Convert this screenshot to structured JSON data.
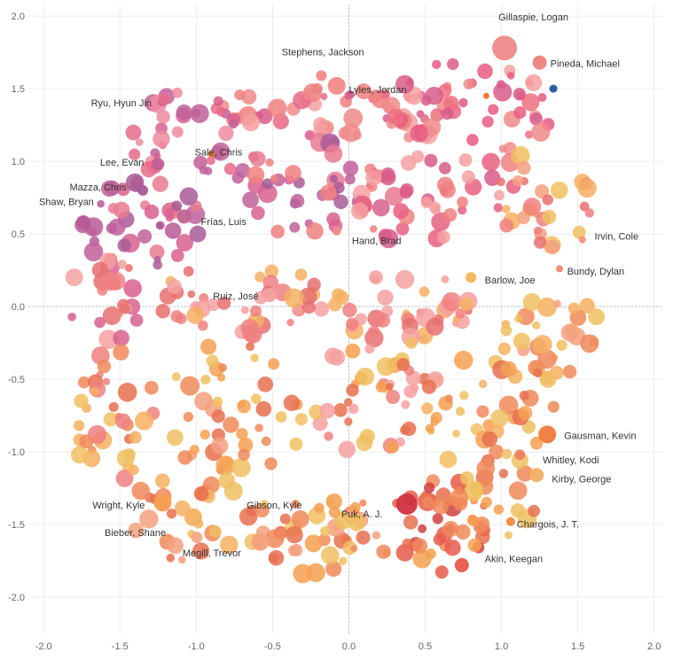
{
  "chart_data": {
    "type": "scatter",
    "title": "",
    "xlabel": "",
    "ylabel": "",
    "xlim": [
      -2.1,
      2.06
    ],
    "ylim": [
      -2.25,
      2.08
    ],
    "xticks": [
      -2.0,
      -1.5,
      -1.0,
      -0.5,
      0.0,
      0.5,
      1.0,
      1.5,
      2.0
    ],
    "yticks": [
      -2.0,
      -1.5,
      -1.0,
      -0.5,
      0.0,
      0.5,
      1.0,
      1.5,
      2.0
    ],
    "x_tick_labels": [
      "-2.0",
      "-1.5",
      "-1.0",
      "-0.5",
      "0.0",
      "0.5",
      "1.0",
      "1.5",
      "2.0"
    ],
    "y_tick_labels": [
      "-2.0",
      "-1.5",
      "-1.0",
      "-0.5",
      "0.0",
      "0.5",
      "1.0",
      "1.5",
      "2.0"
    ],
    "grid": true,
    "zero_lines": true,
    "legend": "none",
    "color_scale": [
      "#c8143c",
      "#e8604a",
      "#f48a4a",
      "#f2b85a",
      "#f0c060",
      "#f08080",
      "#c86090",
      "#a05090",
      "#2c5fa0"
    ],
    "labeled_points": [
      {
        "name": "Gillaspie, Logan",
        "x": 1.02,
        "y": 1.78,
        "size": 14,
        "color": "#f08a8a"
      },
      {
        "name": "Pineda, Michael",
        "x": 1.25,
        "y": 1.68,
        "size": 8,
        "color": "#f08080"
      },
      {
        "name": "Stephens, Jackson",
        "x": -0.18,
        "y": 1.59,
        "size": 6,
        "color": "#f08a8a"
      },
      {
        "name": "Lyles, Jordan",
        "x": -0.08,
        "y": 1.52,
        "size": 10,
        "color": "#f28a8a"
      },
      {
        "name": "Ryu, Hyun Jin",
        "x": -1.21,
        "y": 1.43,
        "size": 6,
        "color": "#e86a8a"
      },
      {
        "name": "Lee, Evan",
        "x": -1.25,
        "y": 0.98,
        "size": 7,
        "color": "#c0609a"
      },
      {
        "name": "Sale, Chris",
        "x": -0.9,
        "y": 1.05,
        "size": 4,
        "color": "#f07a3a"
      },
      {
        "name": "Mazza, Chris",
        "x": -1.35,
        "y": 0.8,
        "size": 6,
        "color": "#a85a96"
      },
      {
        "name": "Shaw, Bryan",
        "x": -1.74,
        "y": 0.58,
        "size": 8,
        "color": "#b85a96"
      },
      {
        "name": "Frías, Luis",
        "x": -1.08,
        "y": 0.62,
        "size": 8,
        "color": "#c06494"
      },
      {
        "name": "Hand, Brad",
        "x": -0.08,
        "y": 0.52,
        "size": 5,
        "color": "#f08a8a"
      },
      {
        "name": "Irvin, Cole",
        "x": 1.53,
        "y": 0.46,
        "size": 4,
        "color": "#f29080"
      },
      {
        "name": "Bundy, Dylan",
        "x": 1.38,
        "y": 0.26,
        "size": 4,
        "color": "#f48a6a"
      },
      {
        "name": "Barlow, Joe",
        "x": 0.8,
        "y": 0.2,
        "size": 6,
        "color": "#f4b45a"
      },
      {
        "name": "Ruiz, José",
        "x": -0.52,
        "y": 0.08,
        "size": 8,
        "color": "#f4a0a0"
      },
      {
        "name": "Gausman, Kevin",
        "x": 1.3,
        "y": -0.88,
        "size": 10,
        "color": "#f07a3a"
      },
      {
        "name": "Whitley, Kodi",
        "x": 1.12,
        "y": -1.02,
        "size": 6,
        "color": "#f08060"
      },
      {
        "name": "Kirby, George",
        "x": 1.23,
        "y": -1.16,
        "size": 8,
        "color": "#f0b060"
      },
      {
        "name": "Wright, Kyle",
        "x": -1.22,
        "y": -1.35,
        "size": 10,
        "color": "#f4a050"
      },
      {
        "name": "Gibson, Kyle",
        "x": -0.35,
        "y": -1.36,
        "size": 5,
        "color": "#f09060"
      },
      {
        "name": "Puk, A. J.",
        "x": 0.38,
        "y": -1.36,
        "size": 12,
        "color": "#d03040"
      },
      {
        "name": "Bieber, Shane",
        "x": -1.02,
        "y": -1.45,
        "size": 10,
        "color": "#f4b060"
      },
      {
        "name": "Chargois, J. T.",
        "x": 1.06,
        "y": -1.48,
        "size": 5,
        "color": "#f08a3a"
      },
      {
        "name": "Megill, Trevor",
        "x": -0.58,
        "y": -1.62,
        "size": 10,
        "color": "#f4a080"
      },
      {
        "name": "Akin, Keegan",
        "x": 0.74,
        "y": -1.78,
        "size": 8,
        "color": "#e85a4a"
      }
    ],
    "point_labels": [
      {
        "text": "Gillaspie, Logan",
        "x": 0.98,
        "y": 1.97
      },
      {
        "text": "Pineda, Michael",
        "x": 1.32,
        "y": 1.65
      },
      {
        "text": "Stephens, Jackson",
        "x": -0.44,
        "y": 1.73
      },
      {
        "text": "Lyles, Jordan",
        "x": 0.0,
        "y": 1.47
      },
      {
        "text": "Ryu, Hyun Jin",
        "x": -1.69,
        "y": 1.38
      },
      {
        "text": "Lee, Evan",
        "x": -1.63,
        "y": 0.97
      },
      {
        "text": "Sale, Chris",
        "x": -1.01,
        "y": 1.04
      },
      {
        "text": "Mazza, Chris",
        "x": -1.83,
        "y": 0.8
      },
      {
        "text": "Shaw, Bryan",
        "x": -2.03,
        "y": 0.7
      },
      {
        "text": "Frías, Luis",
        "x": -0.97,
        "y": 0.56
      },
      {
        "text": "Hand, Brad",
        "x": 0.02,
        "y": 0.43
      },
      {
        "text": "Irvin, Cole",
        "x": 1.61,
        "y": 0.46
      },
      {
        "text": "Bundy, Dylan",
        "x": 1.43,
        "y": 0.22
      },
      {
        "text": "Barlow, Joe",
        "x": 0.89,
        "y": 0.16
      },
      {
        "text": "Ruiz, José",
        "x": -0.89,
        "y": 0.05
      },
      {
        "text": "Gausman, Kevin",
        "x": 1.41,
        "y": -0.91
      },
      {
        "text": "Whitley, Kodi",
        "x": 1.27,
        "y": -1.08
      },
      {
        "text": "Kirby, George",
        "x": 1.33,
        "y": -1.21
      },
      {
        "text": "Wright, Kyle",
        "x": -1.68,
        "y": -1.39
      },
      {
        "text": "Gibson, Kyle",
        "x": -0.67,
        "y": -1.39
      },
      {
        "text": "Puk, A. J.",
        "x": -0.05,
        "y": -1.45
      },
      {
        "text": "Bieber, Shane",
        "x": -1.6,
        "y": -1.58
      },
      {
        "text": "Chargois, J. T.",
        "x": 1.1,
        "y": -1.52
      },
      {
        "text": "Megill, Trevor",
        "x": -1.09,
        "y": -1.72
      },
      {
        "text": "Akin, Keegan",
        "x": 0.89,
        "y": -1.76
      }
    ],
    "clusters": [
      {
        "cx": -0.05,
        "cy": 1.35,
        "rx": 0.85,
        "ry": 0.18,
        "n": 55,
        "colors": [
          "#f08080",
          "#e86a8a",
          "#f4a0a0",
          "#d85a8a",
          "#f08a8a"
        ]
      },
      {
        "cx": 0.78,
        "cy": 1.35,
        "rx": 0.55,
        "ry": 0.35,
        "n": 45,
        "colors": [
          "#f07080",
          "#e85a80",
          "#f4a0a0",
          "#d85a8a",
          "#f08a8a"
        ]
      },
      {
        "cx": -1.05,
        "cy": 1.2,
        "rx": 0.4,
        "ry": 0.35,
        "n": 35,
        "colors": [
          "#e86a8a",
          "#c0609a",
          "#d86090",
          "#f08aa0"
        ]
      },
      {
        "cx": -1.35,
        "cy": 0.55,
        "rx": 0.4,
        "ry": 0.35,
        "n": 40,
        "colors": [
          "#a85a96",
          "#c0609a",
          "#b85a96",
          "#d86090",
          "#e87a90"
        ]
      },
      {
        "cx": -0.25,
        "cy": 0.8,
        "rx": 0.55,
        "ry": 0.35,
        "n": 45,
        "colors": [
          "#d86090",
          "#c0609a",
          "#f08080",
          "#e87a90",
          "#a85a96"
        ]
      },
      {
        "cx": 0.55,
        "cy": 0.75,
        "rx": 0.55,
        "ry": 0.35,
        "n": 45,
        "colors": [
          "#e86080",
          "#f08080",
          "#d85a8a",
          "#f4a0a0"
        ]
      },
      {
        "cx": 1.3,
        "cy": 0.75,
        "rx": 0.35,
        "ry": 0.35,
        "n": 30,
        "colors": [
          "#f4b060",
          "#f0c060",
          "#f4a080",
          "#f08080",
          "#e87070"
        ]
      },
      {
        "cx": -1.6,
        "cy": 0.05,
        "rx": 0.25,
        "ry": 0.3,
        "n": 25,
        "colors": [
          "#f08080",
          "#e87070",
          "#f4a0a0",
          "#d86090"
        ]
      },
      {
        "cx": -0.7,
        "cy": 0.05,
        "rx": 0.55,
        "ry": 0.25,
        "n": 40,
        "colors": [
          "#f4a0a0",
          "#f08080",
          "#f4b060",
          "#e87070"
        ]
      },
      {
        "cx": 0.35,
        "cy": 0.0,
        "rx": 0.45,
        "ry": 0.25,
        "n": 40,
        "colors": [
          "#f08080",
          "#f4a0a0",
          "#e87070",
          "#f4b060"
        ]
      },
      {
        "cx": 1.35,
        "cy": -0.2,
        "rx": 0.35,
        "ry": 0.3,
        "n": 30,
        "colors": [
          "#f4b060",
          "#f0c060",
          "#f08a5a",
          "#f4a080"
        ]
      },
      {
        "cx": -1.55,
        "cy": -0.75,
        "rx": 0.3,
        "ry": 0.45,
        "n": 35,
        "colors": [
          "#f4b060",
          "#f0c060",
          "#f08a5a",
          "#f08080",
          "#e87050"
        ]
      },
      {
        "cx": -0.75,
        "cy": -0.7,
        "rx": 0.5,
        "ry": 0.45,
        "n": 45,
        "colors": [
          "#f4a050",
          "#f0c060",
          "#f08a5a",
          "#f4a080",
          "#e87050"
        ]
      },
      {
        "cx": 0.2,
        "cy": -0.6,
        "rx": 0.45,
        "ry": 0.45,
        "n": 45,
        "colors": [
          "#f4a050",
          "#f0c060",
          "#f08080",
          "#f4a0a0",
          "#e87050"
        ]
      },
      {
        "cx": 0.95,
        "cy": -0.75,
        "rx": 0.45,
        "ry": 0.45,
        "n": 40,
        "colors": [
          "#f4a050",
          "#f0c060",
          "#f08a5a",
          "#e87050",
          "#f4b060"
        ]
      },
      {
        "cx": -1.0,
        "cy": -1.45,
        "rx": 0.5,
        "ry": 0.3,
        "n": 35,
        "colors": [
          "#f4b060",
          "#f08a5a",
          "#f4a080",
          "#e87050",
          "#f0c060"
        ]
      },
      {
        "cx": -0.1,
        "cy": -1.6,
        "rx": 0.45,
        "ry": 0.3,
        "n": 40,
        "colors": [
          "#f4a050",
          "#f08a5a",
          "#f0c060",
          "#f4a080",
          "#e87050"
        ]
      },
      {
        "cx": 0.55,
        "cy": -1.5,
        "rx": 0.35,
        "ry": 0.35,
        "n": 35,
        "colors": [
          "#e85a4a",
          "#f08a5a",
          "#d04040",
          "#f4a050",
          "#e87050"
        ]
      },
      {
        "cx": 1.0,
        "cy": -1.3,
        "rx": 0.3,
        "ry": 0.35,
        "n": 25,
        "colors": [
          "#f4a050",
          "#f08a5a",
          "#f0c060",
          "#e87050"
        ]
      }
    ]
  }
}
